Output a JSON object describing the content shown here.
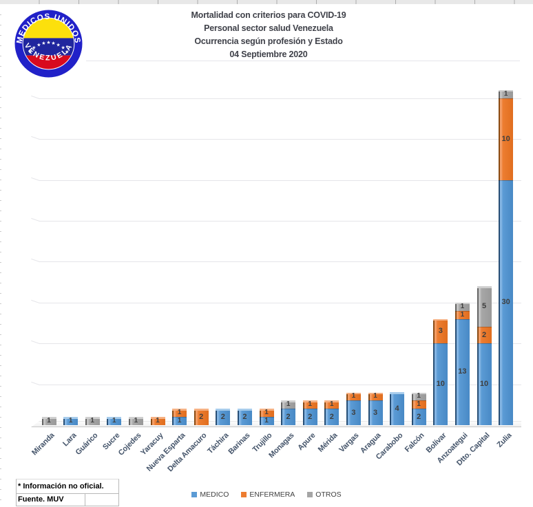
{
  "logo": {
    "top_text": "MEDICOS UNIDOS",
    "bottom_text": "VENEZUELA"
  },
  "title": {
    "line1": "Mortalidad con criterios para COVID-19",
    "line2": "Personal sector salud Venezuela",
    "line3": "Ocurrencia según profesión y Estado",
    "line4": "04 Septiembre 2020"
  },
  "chart_data": {
    "type": "bar",
    "stacked": true,
    "title": "Mortalidad con criterios para COVID-19 — Personal sector salud Venezuela — Ocurrencia según profesión y Estado — 04 Septiembre 2020",
    "categories": [
      "Miranda",
      "Lara",
      "Guárico",
      "Sucre",
      "Cojedes",
      "Yaracuy",
      "Nueva Esparta",
      "Delta Amacuro",
      "Táchira",
      "Barinas",
      "Trujillo",
      "Monagas",
      "Apure",
      "Mérida",
      "Vargas",
      "Aragua",
      "Carabobo",
      "Falcón",
      "Bolívar",
      "Anzoategui",
      "Dtto. Capital",
      "Zulia"
    ],
    "series": [
      {
        "name": "MEDICO",
        "color": "#5B9BD5",
        "values": [
          0,
          1,
          0,
          1,
          0,
          0,
          1,
          0,
          2,
          2,
          1,
          2,
          2,
          2,
          3,
          3,
          4,
          2,
          10,
          13,
          10,
          30
        ]
      },
      {
        "name": "ENFERMERA",
        "color": "#ED7D31",
        "values": [
          0,
          0,
          0,
          0,
          0,
          1,
          1,
          2,
          0,
          0,
          1,
          0,
          1,
          1,
          1,
          1,
          0,
          1,
          3,
          1,
          2,
          10
        ]
      },
      {
        "name": "OTROS",
        "color": "#A5A5A5",
        "values": [
          1,
          0,
          1,
          0,
          1,
          0,
          0,
          0,
          0,
          0,
          0,
          1,
          0,
          0,
          0,
          0,
          0,
          1,
          0,
          1,
          5,
          1
        ]
      }
    ],
    "xlabel": "",
    "ylabel": "",
    "ylim": [
      0,
      45
    ],
    "gridlines": [
      5,
      10,
      15,
      20,
      25,
      30,
      35,
      40
    ],
    "grid": true,
    "legend_position": "bottom",
    "data_labels": "inside"
  },
  "legend_colors": {
    "medico": "#5B9BD5",
    "enfermera": "#ED7D31",
    "otros": "#A5A5A5"
  },
  "notes": {
    "note1": "* Información no oficial.",
    "note2": "Fuente. MUV"
  }
}
